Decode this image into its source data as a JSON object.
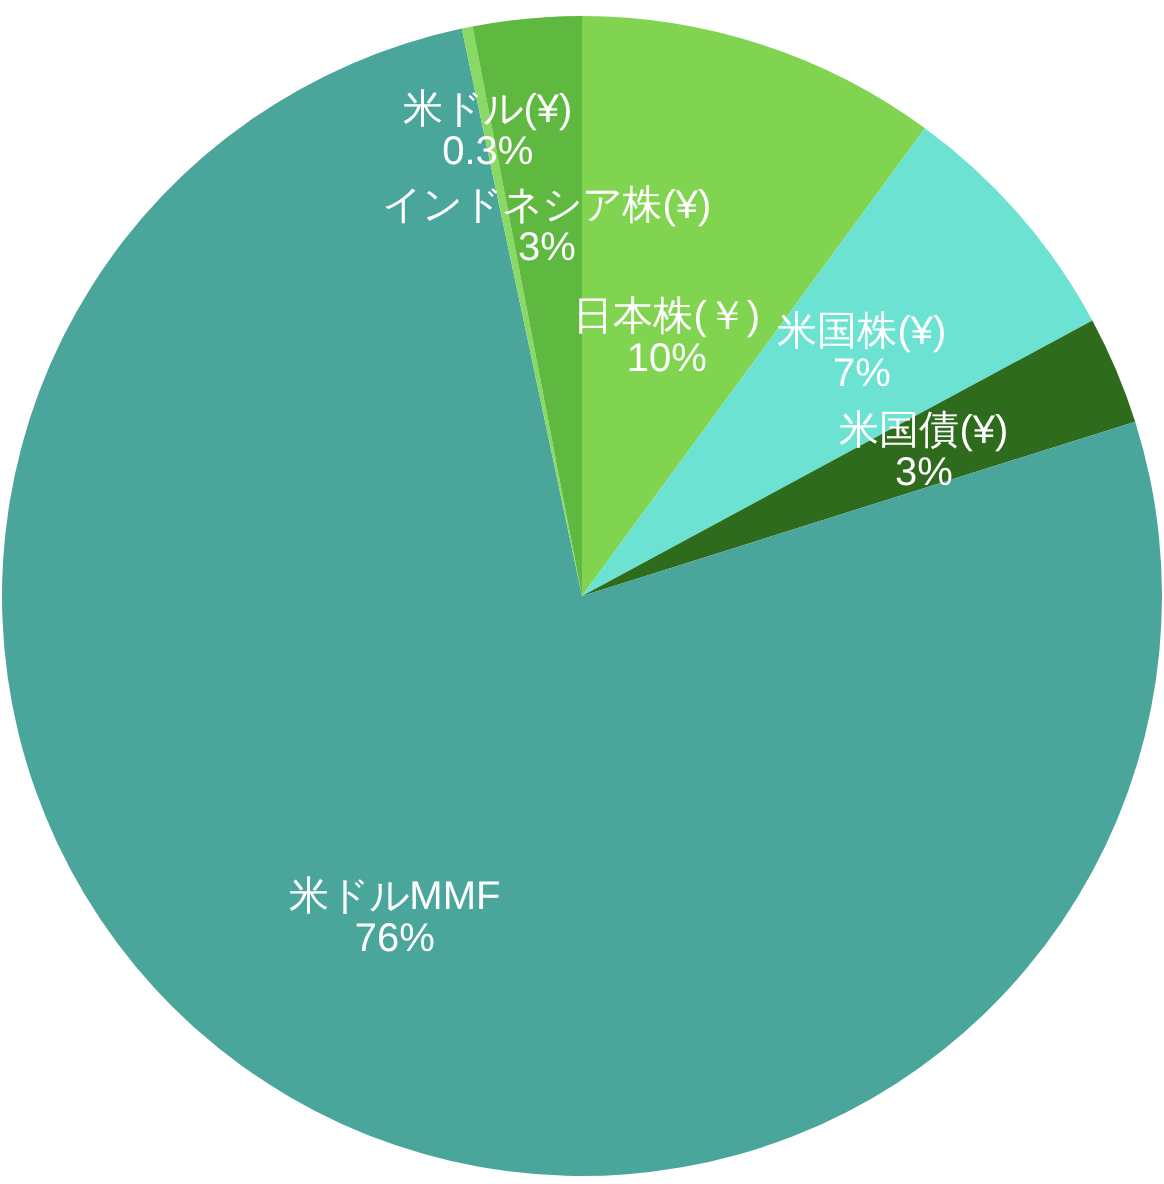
{
  "chart_data": {
    "type": "pie",
    "categories": [
      "日本株(￥)",
      "米国株(¥)",
      "米国債(¥)",
      "米ドルMMF",
      "米ドル(¥)",
      "インドネシア株(¥)"
    ],
    "values": [
      10,
      7,
      3,
      76,
      0.3,
      3
    ],
    "value_labels": [
      "10%",
      "7%",
      "3%",
      "76%",
      "0.3%",
      "3%"
    ],
    "colors": [
      "#80d450",
      "#6ce2d2",
      "#2f6b1d",
      "#4aa59b",
      "#8ad865",
      "#5fb83f"
    ]
  }
}
